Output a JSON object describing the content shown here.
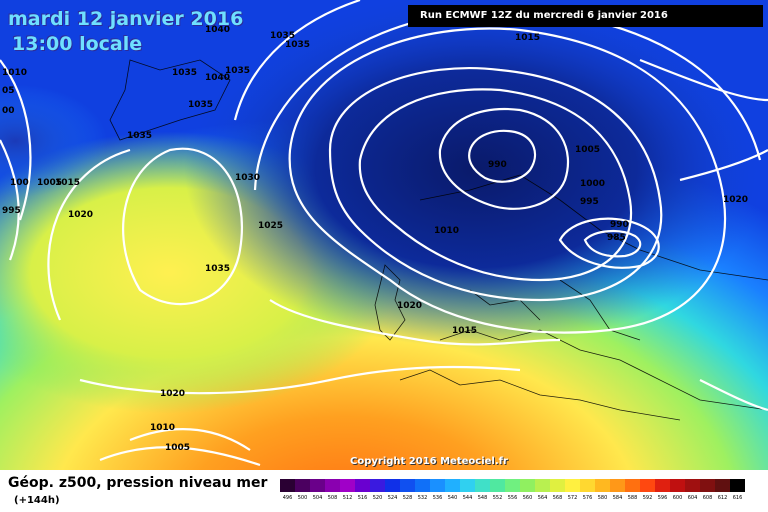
{
  "map": {
    "title_date": "mardi 12 janvier 2016",
    "title_time": "13:00 locale",
    "run_info": "Run ECMWF 12Z du mercredi 6 janvier 2016",
    "copyright": "Copyright 2016 Meteociel.fr",
    "isobar_labels": [
      "1040",
      "1035",
      "1035",
      "1010",
      "05",
      "1035",
      "1040",
      "1035",
      "00",
      "1035",
      "1035",
      "1030",
      "995",
      "100",
      "1005",
      "1015",
      "1020",
      "1025",
      "1035",
      "1015",
      "990",
      "1005",
      "1000",
      "995",
      "990",
      "985",
      "1010",
      "1020",
      "1015",
      "1020",
      "1020",
      "1010",
      "1005"
    ],
    "label_colors": {
      "ocean_low": "#0a1f7a",
      "mid": "#1e90ff",
      "green": "#6ee35a",
      "yellow": "#ffe84d",
      "orange": "#ff9a1a",
      "isobar": "#ffffff"
    }
  },
  "legend": {
    "product_title": "Géop. z500, pression niveau mer",
    "forecast_hour": "(+144h)",
    "scale_values": [
      "496",
      "500",
      "504",
      "508",
      "512",
      "516",
      "520",
      "524",
      "528",
      "532",
      "536",
      "540",
      "544",
      "548",
      "552",
      "556",
      "560",
      "564",
      "568",
      "572",
      "576",
      "580",
      "584",
      "588",
      "592",
      "596",
      "600",
      "604",
      "608",
      "612",
      "616"
    ],
    "scale_colors": [
      "#2a0033",
      "#4b0060",
      "#6a008a",
      "#8a00b0",
      "#a000c8",
      "#6a00d0",
      "#3a1ae0",
      "#1030e8",
      "#1050f0",
      "#1070f8",
      "#1a90ff",
      "#20b0ff",
      "#30d0f0",
      "#40e0c8",
      "#50e8a0",
      "#70f080",
      "#90f060",
      "#b8f050",
      "#e0f040",
      "#fff040",
      "#ffd830",
      "#ffb820",
      "#ff9818",
      "#ff7010",
      "#ff4810",
      "#e02010",
      "#c01010",
      "#a01010",
      "#801010",
      "#601010",
      "#000000"
    ]
  }
}
